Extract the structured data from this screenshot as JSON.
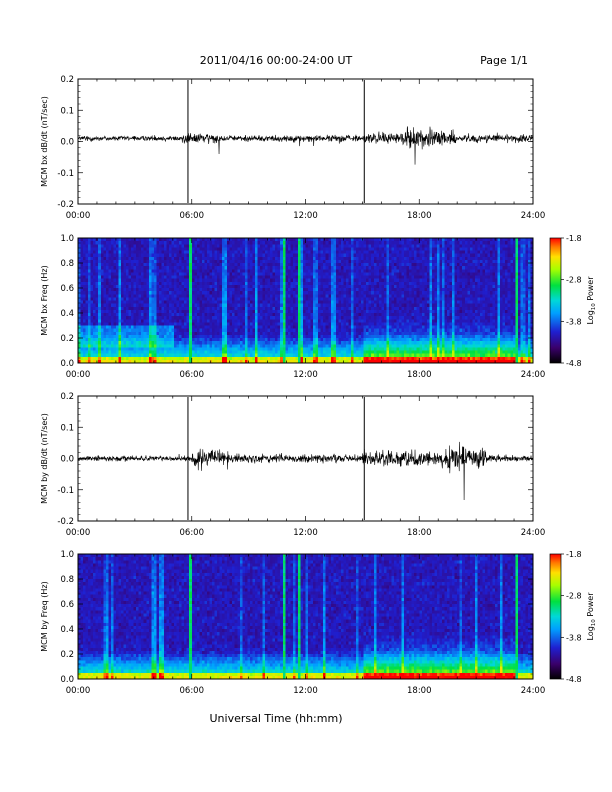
{
  "header": {
    "title": "2011/04/16  00:00-24:00 UT",
    "page": "Page 1/1"
  },
  "footer": {
    "xaxis_label": "Universal Time (hh:mm)"
  },
  "colorbar": {
    "label_main": "Log",
    "label_sub": "10",
    "label_tail": " Power",
    "ticks": [
      "-1.8",
      "-2.8",
      "-3.8",
      "-4.8"
    ],
    "range": [
      -4.8,
      -1.8
    ]
  },
  "chart_data": [
    {
      "type": "line",
      "ylabel": "MCM bx dB/dt (nT/sec)",
      "xlim": [
        0,
        24
      ],
      "ylim": [
        -0.2,
        0.2
      ],
      "xticks": [
        "00:00",
        "06:00",
        "12:00",
        "18:00",
        "24:00"
      ],
      "yticks": [
        "0.2",
        "0.1",
        "0.0",
        "-0.1",
        "-0.2"
      ],
      "spikes_hours": [
        5.8,
        15.1
      ],
      "baseline": 0.01,
      "noise_profile": [
        {
          "start": 0,
          "end": 5.5,
          "amplitude": 0.012
        },
        {
          "start": 5.5,
          "end": 7.5,
          "amplitude": 0.025
        },
        {
          "start": 7.5,
          "end": 15,
          "amplitude": 0.015
        },
        {
          "start": 15,
          "end": 17,
          "amplitude": 0.025
        },
        {
          "start": 17,
          "end": 20,
          "amplitude": 0.045
        },
        {
          "start": 20,
          "end": 24,
          "amplitude": 0.018
        }
      ]
    },
    {
      "type": "heatmap",
      "ylabel": "MCM bx Freq (Hz)",
      "xlim": [
        0,
        24
      ],
      "ylim": [
        0,
        1
      ],
      "xticks": [
        "00:00",
        "06:00",
        "12:00",
        "18:00",
        "24:00"
      ],
      "yticks": [
        "1.0",
        "0.8",
        "0.6",
        "0.4",
        "0.2",
        "0.0"
      ],
      "vertical_bands_hours": [
        5.8,
        10.8,
        11.6,
        23.0
      ],
      "colorbar_range": [
        -4.8,
        -1.8
      ]
    },
    {
      "type": "line",
      "ylabel": "MCM by dB/dt (nT/sec)",
      "xlim": [
        0,
        24
      ],
      "ylim": [
        -0.2,
        0.2
      ],
      "xticks": [
        "00:00",
        "06:00",
        "12:00",
        "18:00",
        "24:00"
      ],
      "yticks": [
        "0.2",
        "0.1",
        "0.0",
        "-0.1",
        "-0.2"
      ],
      "spikes_hours": [
        5.8,
        15.1
      ],
      "baseline": 0.0,
      "noise_profile": [
        {
          "start": 0,
          "end": 6,
          "amplitude": 0.012
        },
        {
          "start": 6,
          "end": 8,
          "amplitude": 0.04
        },
        {
          "start": 8,
          "end": 15,
          "amplitude": 0.02
        },
        {
          "start": 15,
          "end": 19.5,
          "amplitude": 0.035
        },
        {
          "start": 19.5,
          "end": 21.5,
          "amplitude": 0.055
        },
        {
          "start": 21.5,
          "end": 24,
          "amplitude": 0.015
        }
      ]
    },
    {
      "type": "heatmap",
      "ylabel": "MCM by Freq (Hz)",
      "xlim": [
        0,
        24
      ],
      "ylim": [
        0,
        1
      ],
      "xticks": [
        "00:00",
        "06:00",
        "12:00",
        "18:00",
        "24:00"
      ],
      "yticks": [
        "1.0",
        "0.8",
        "0.6",
        "0.4",
        "0.2",
        "0.0"
      ],
      "vertical_bands_hours": [
        5.8,
        10.8,
        11.6,
        23.0
      ],
      "colorbar_range": [
        -4.8,
        -1.8
      ]
    }
  ]
}
